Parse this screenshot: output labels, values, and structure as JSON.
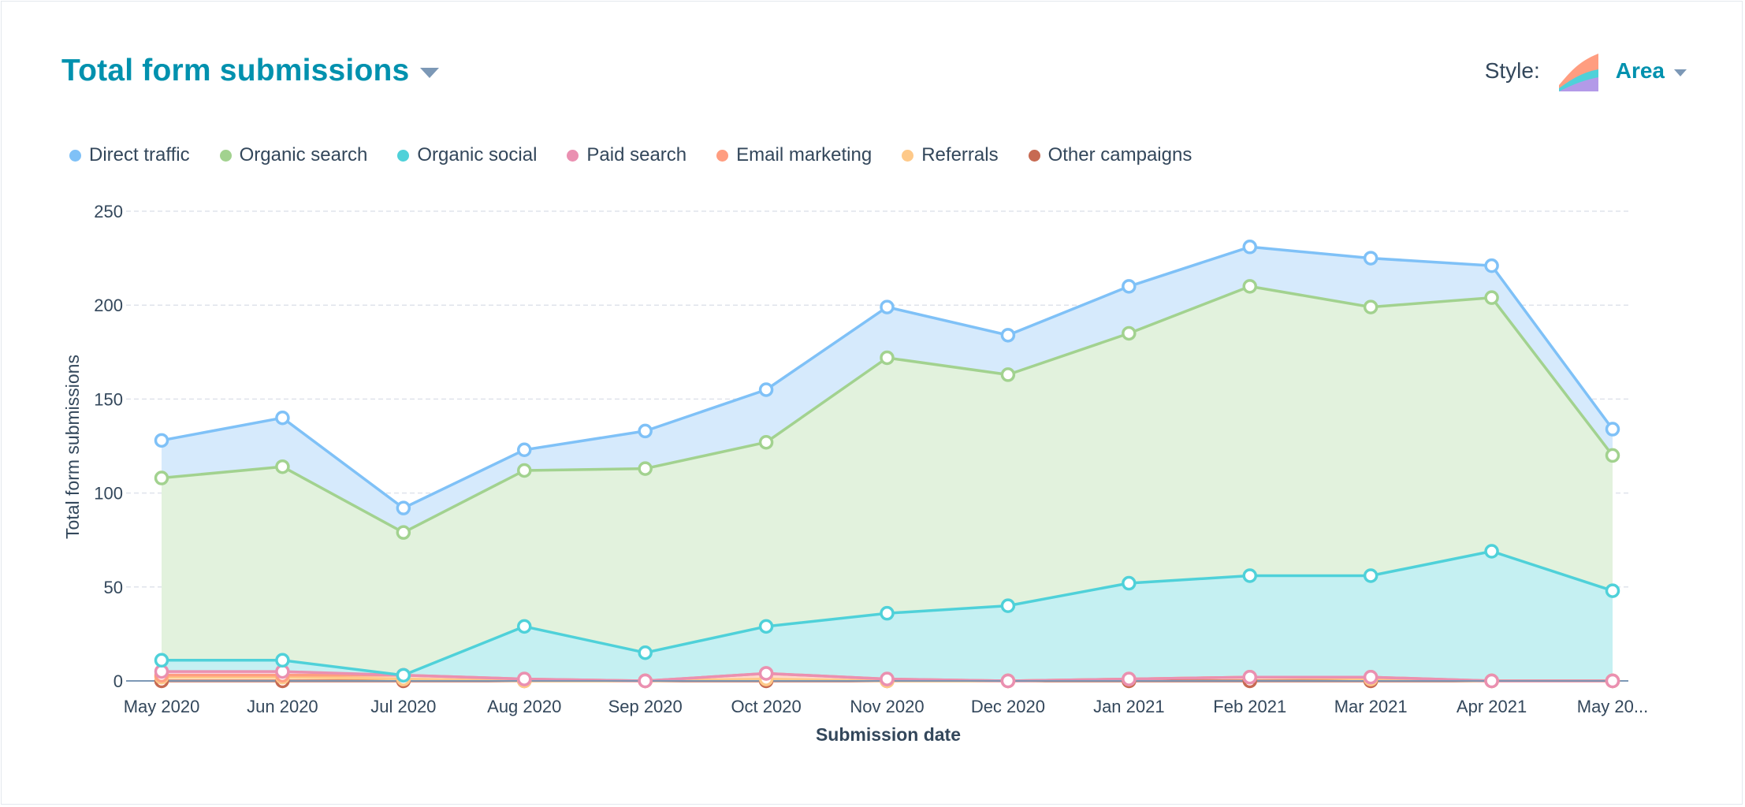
{
  "header": {
    "title": "Total form submissions",
    "style_label": "Style:",
    "style_value": "Area"
  },
  "colors": {
    "title": "#0091ae",
    "text": "#33475b",
    "caret": "#7c98b6"
  },
  "chart_data": {
    "type": "area",
    "stacked": true,
    "xlabel": "Submission date",
    "ylabel": "Total form submissions",
    "ylim": [
      0,
      250
    ],
    "yticks": [
      0,
      50,
      100,
      150,
      200,
      250
    ],
    "grid": true,
    "legend_position": "top-left",
    "categories": [
      "May 2020",
      "Jun 2020",
      "Jul 2020",
      "Aug 2020",
      "Sep 2020",
      "Oct 2020",
      "Nov 2020",
      "Dec 2020",
      "Jan 2021",
      "Feb 2021",
      "Mar 2021",
      "Apr 2021",
      "May 20..."
    ],
    "series": [
      {
        "name": "Direct traffic",
        "color": "#7fc1f7",
        "fill": "#d6eafc",
        "values": [
          20,
          26,
          13,
          11,
          20,
          28,
          27,
          21,
          25,
          21,
          26,
          17,
          14
        ]
      },
      {
        "name": "Organic search",
        "color": "#a2d28f",
        "fill": "#e2f2dd",
        "values": [
          97,
          103,
          76,
          83,
          98,
          98,
          136,
          123,
          133,
          154,
          143,
          135,
          72
        ]
      },
      {
        "name": "Organic social",
        "color": "#4fd1d9",
        "fill": "#c5f0f2",
        "values": [
          6,
          6,
          0,
          28,
          15,
          25,
          35,
          40,
          51,
          54,
          54,
          69,
          48
        ]
      },
      {
        "name": "Paid search",
        "color": "#ea90b1",
        "fill": "#f8d5e2",
        "values": [
          2,
          2,
          0,
          0,
          0,
          0,
          0,
          0,
          0,
          0,
          0,
          0,
          0
        ]
      },
      {
        "name": "Email marketing",
        "color": "#ff9d80",
        "fill": "#ffd8cc",
        "values": [
          1,
          1,
          2,
          1,
          0,
          3,
          1,
          0,
          0,
          0,
          1,
          0,
          0
        ]
      },
      {
        "name": "Referrals",
        "color": "#fec989",
        "fill": "#ffecd3",
        "values": [
          2,
          2,
          1,
          0,
          0,
          1,
          0,
          0,
          1,
          2,
          1,
          0,
          0
        ]
      },
      {
        "name": "Other campaigns",
        "color": "#c76a52",
        "fill": "#eed0c8",
        "values": [
          0,
          0,
          0,
          0,
          0,
          0,
          0,
          0,
          0,
          0,
          0,
          0,
          0
        ]
      }
    ]
  }
}
